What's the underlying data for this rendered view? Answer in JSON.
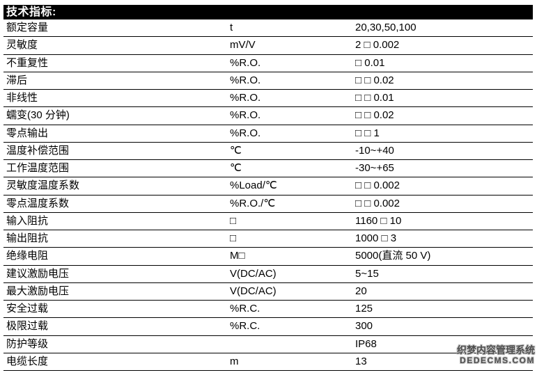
{
  "table": {
    "title": "技术指标:",
    "rows": [
      {
        "label": "额定容量",
        "unit": "t",
        "value": "20,30,50,100"
      },
      {
        "label": "灵敏度",
        "unit": "mV/V",
        "value": "2 □ 0.002"
      },
      {
        "label": "不重复性",
        "unit": "%R.O.",
        "value": "□ 0.01"
      },
      {
        "label": "滞后",
        "unit": "%R.O.",
        "value": "□ □ 0.02"
      },
      {
        "label": "非线性",
        "unit": "%R.O.",
        "value": "□ □ 0.01"
      },
      {
        "label": "蠕变(30 分钟)",
        "unit": "%R.O.",
        "value": "□ □ 0.02"
      },
      {
        "label": "零点输出",
        "unit": "%R.O.",
        "value": "□ □ 1"
      },
      {
        "label": "温度补偿范围",
        "unit": "℃",
        "value": "-10~+40"
      },
      {
        "label": "工作温度范围",
        "unit": "℃",
        "value": "-30~+65"
      },
      {
        "label": "灵敏度温度系数",
        "unit": "%Load/℃",
        "value": "□ □ 0.002"
      },
      {
        "label": "零点温度系数",
        "unit": "%R.O./℃",
        "value": "□ □ 0.002"
      },
      {
        "label": "输入阻抗",
        "unit": "□",
        "value": "1160 □ 10"
      },
      {
        "label": "输出阻抗",
        "unit": "□",
        "value": "1000 □ 3"
      },
      {
        "label": "绝缘电阻",
        "unit": "M□",
        "value": "5000(直流 50 V)"
      },
      {
        "label": "建议激励电压",
        "unit": "V(DC/AC)",
        "value": "5~15"
      },
      {
        "label": "最大激励电压",
        "unit": "V(DC/AC)",
        "value": "20"
      },
      {
        "label": "安全过载",
        "unit": "%R.C.",
        "value": "125"
      },
      {
        "label": "极限过载",
        "unit": "%R.C.",
        "value": "300"
      },
      {
        "label": "防护等级",
        "unit": "",
        "value": "IP68"
      },
      {
        "label": "电缆长度",
        "unit": "m",
        "value": "13"
      }
    ]
  },
  "watermark": {
    "line1": "织梦内容管理系统",
    "line2": "DEDECMS.COM"
  },
  "colors": {
    "header_bg": "#000000",
    "header_text": "#ffffff",
    "body_text": "#000000",
    "row_border": "#000000",
    "watermark_text": "#4d4d4d",
    "watermark_outline": "#c9c9c9"
  }
}
